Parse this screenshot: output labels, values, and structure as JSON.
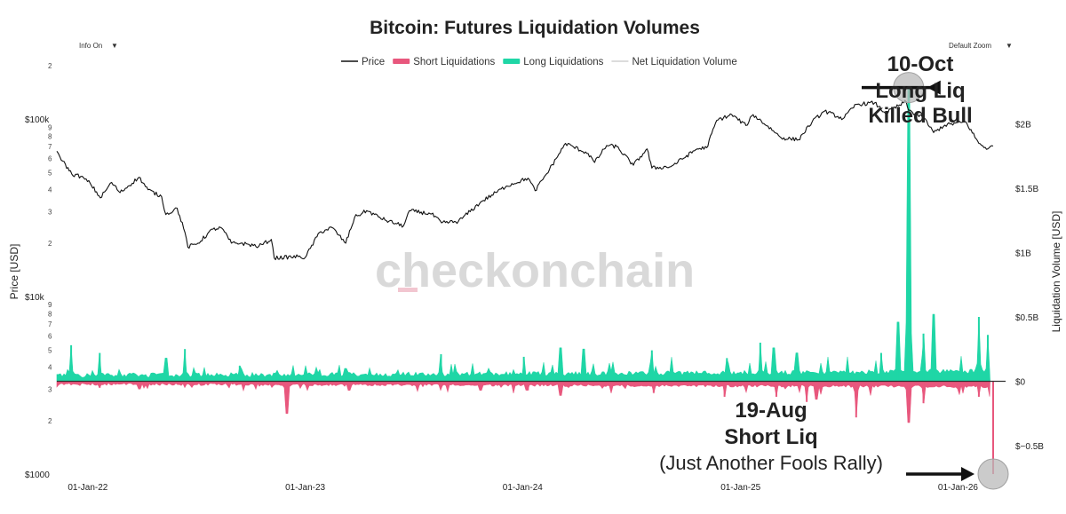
{
  "page": {
    "title": "Bitcoin: Futures Liquidation Volumes",
    "info_toggle": "Info On",
    "zoom_control": "Default Zoom",
    "dropdown_icon": "triangle-down-icon",
    "watermark": "checkonchain"
  },
  "colors": {
    "price": "#111111",
    "short": "#e8577d",
    "long": "#1fd6a6",
    "net": "#d0d0d0",
    "marker": "#b9b9b9"
  },
  "chart_data": {
    "type": "line",
    "title": "Bitcoin: Futures Liquidation Volumes",
    "x_ticks": [
      "01-Jan-22",
      "01-Jan-23",
      "01-Jan-24",
      "01-Jan-25",
      "01-Jan-26"
    ],
    "x_tick_dates": [
      "2022-01-01",
      "2023-01-01",
      "2024-01-01",
      "2025-01-01",
      "2026-01-01"
    ],
    "x_range": [
      "2021-11-10",
      "2026-03-01"
    ],
    "y_left": {
      "label": "Price [USD]",
      "scale": "log",
      "range": [
        1000,
        200000
      ],
      "major_ticks": [
        {
          "value": 1000,
          "label": "$1000"
        },
        {
          "value": 10000,
          "label": "$10k"
        },
        {
          "value": 100000,
          "label": "$100k"
        }
      ],
      "minor_ticks": [
        {
          "value": 2000,
          "label": "2"
        },
        {
          "value": 3000,
          "label": "3"
        },
        {
          "value": 4000,
          "label": "4"
        },
        {
          "value": 5000,
          "label": "5"
        },
        {
          "value": 6000,
          "label": "6"
        },
        {
          "value": 7000,
          "label": "7"
        },
        {
          "value": 8000,
          "label": "8"
        },
        {
          "value": 9000,
          "label": "9"
        },
        {
          "value": 20000,
          "label": "2"
        },
        {
          "value": 30000,
          "label": "3"
        },
        {
          "value": 40000,
          "label": "4"
        },
        {
          "value": 50000,
          "label": "5"
        },
        {
          "value": 60000,
          "label": "6"
        },
        {
          "value": 70000,
          "label": "7"
        },
        {
          "value": 80000,
          "label": "8"
        },
        {
          "value": 90000,
          "label": "9"
        },
        {
          "value": 200000,
          "label": "2"
        }
      ]
    },
    "y_right": {
      "label": "Liquidation Volume [USD]",
      "range": [
        -0.72,
        2.45
      ],
      "unit": "billions USD",
      "ticks": [
        {
          "value": 2,
          "label": "$2B"
        },
        {
          "value": 1.5,
          "label": "$1.5B"
        },
        {
          "value": 1,
          "label": "$1B"
        },
        {
          "value": 0.5,
          "label": "$0.5B"
        },
        {
          "value": 0,
          "label": "$0"
        },
        {
          "value": -0.5,
          "label": "$−0.5B"
        }
      ]
    },
    "legend": {
      "placement": "top-center",
      "items": [
        {
          "name": "Price",
          "style": "line",
          "color": "#111111"
        },
        {
          "name": "Short Liquidations",
          "style": "area",
          "color": "#e8577d"
        },
        {
          "name": "Long Liquidations",
          "style": "area",
          "color": "#1fd6a6"
        },
        {
          "name": "Net Liquidation Volume",
          "style": "line",
          "color": "#d0d0d0"
        }
      ]
    },
    "series": [
      {
        "name": "Price",
        "axis": "left",
        "points": [
          [
            "2021-11-10",
            66000
          ],
          [
            "2021-11-20",
            58000
          ],
          [
            "2021-12-05",
            49000
          ],
          [
            "2021-12-20",
            47500
          ],
          [
            "2022-01-05",
            43500
          ],
          [
            "2022-01-22",
            36000
          ],
          [
            "2022-02-10",
            44000
          ],
          [
            "2022-02-24",
            38500
          ],
          [
            "2022-03-28",
            47000
          ],
          [
            "2022-04-12",
            40000
          ],
          [
            "2022-05-05",
            36500
          ],
          [
            "2022-05-12",
            29000
          ],
          [
            "2022-05-31",
            31500
          ],
          [
            "2022-06-13",
            23000
          ],
          [
            "2022-06-18",
            19000
          ],
          [
            "2022-07-05",
            20000
          ],
          [
            "2022-07-30",
            24000
          ],
          [
            "2022-08-14",
            24300
          ],
          [
            "2022-08-30",
            20000
          ],
          [
            "2022-09-15",
            20000
          ],
          [
            "2022-10-15",
            19200
          ],
          [
            "2022-11-05",
            21000
          ],
          [
            "2022-11-10",
            16500
          ],
          [
            "2022-12-20",
            16800
          ],
          [
            "2023-01-01",
            16600
          ],
          [
            "2023-01-25",
            23000
          ],
          [
            "2023-02-15",
            24500
          ],
          [
            "2023-03-10",
            20000
          ],
          [
            "2023-03-25",
            28000
          ],
          [
            "2023-04-14",
            30500
          ],
          [
            "2023-05-15",
            27000
          ],
          [
            "2023-06-15",
            25000
          ],
          [
            "2023-06-25",
            30500
          ],
          [
            "2023-08-01",
            29200
          ],
          [
            "2023-08-18",
            26000
          ],
          [
            "2023-09-15",
            26500
          ],
          [
            "2023-10-25",
            34500
          ],
          [
            "2023-12-05",
            42000
          ],
          [
            "2024-01-10",
            46500
          ],
          [
            "2024-01-22",
            39500
          ],
          [
            "2024-02-15",
            52000
          ],
          [
            "2024-03-13",
            73000
          ],
          [
            "2024-04-20",
            64000
          ],
          [
            "2024-05-01",
            57000
          ],
          [
            "2024-05-21",
            71000
          ],
          [
            "2024-06-07",
            70000
          ],
          [
            "2024-07-05",
            55000
          ],
          [
            "2024-07-28",
            68000
          ],
          [
            "2024-08-05",
            53000
          ],
          [
            "2024-09-06",
            54000
          ],
          [
            "2024-10-20",
            68000
          ],
          [
            "2024-11-05",
            69000
          ],
          [
            "2024-11-22",
            98500
          ],
          [
            "2024-12-17",
            106000
          ],
          [
            "2025-01-10",
            92000
          ],
          [
            "2025-01-22",
            106000
          ],
          [
            "2025-02-25",
            86000
          ],
          [
            "2025-03-10",
            78500
          ],
          [
            "2025-04-08",
            76500
          ],
          [
            "2025-05-01",
            96500
          ],
          [
            "2025-05-22",
            111000
          ],
          [
            "2025-06-22",
            100500
          ],
          [
            "2025-07-14",
            121000
          ],
          [
            "2025-08-14",
            123500
          ],
          [
            "2025-09-01",
            108000
          ],
          [
            "2025-10-06",
            125500
          ],
          [
            "2025-10-10",
            112000
          ],
          [
            "2025-11-05",
            101000
          ],
          [
            "2025-11-21",
            84000
          ],
          [
            "2025-12-10",
            92500
          ],
          [
            "2026-01-14",
            96500
          ],
          [
            "2026-02-05",
            73000
          ],
          [
            "2026-02-20",
            68000
          ],
          [
            "2026-03-01",
            70500
          ]
        ]
      },
      {
        "name": "Long Liquidations",
        "axis": "right",
        "unit": "billions USD",
        "points": [
          [
            "2021-12-04",
            0.28
          ],
          [
            "2022-01-21",
            0.22
          ],
          [
            "2022-05-12",
            0.18
          ],
          [
            "2022-06-13",
            0.25
          ],
          [
            "2022-09-13",
            0.12
          ],
          [
            "2023-03-09",
            0.1
          ],
          [
            "2023-08-17",
            0.21
          ],
          [
            "2024-01-03",
            0.19
          ],
          [
            "2024-03-05",
            0.26
          ],
          [
            "2024-04-13",
            0.25
          ],
          [
            "2024-08-05",
            0.24
          ],
          [
            "2024-12-09",
            0.18
          ],
          [
            "2025-02-03",
            0.3
          ],
          [
            "2025-02-25",
            0.26
          ],
          [
            "2025-04-06",
            0.22
          ],
          [
            "2025-08-25",
            0.22
          ],
          [
            "2025-09-22",
            0.46
          ],
          [
            "2025-10-10",
            2.28
          ],
          [
            "2025-11-04",
            0.37
          ],
          [
            "2025-11-21",
            0.52
          ],
          [
            "2026-02-05",
            0.5
          ],
          [
            "2026-02-20",
            0.36
          ]
        ]
      },
      {
        "name": "Short Liquidations",
        "axis": "right",
        "unit": "billions USD",
        "points": [
          [
            "2022-01-21",
            -0.05
          ],
          [
            "2022-03-28",
            -0.06
          ],
          [
            "2022-12-01",
            -0.25
          ],
          [
            "2023-03-15",
            -0.07
          ],
          [
            "2023-10-23",
            -0.07
          ],
          [
            "2024-01-10",
            -0.07
          ],
          [
            "2024-03-05",
            -0.11
          ],
          [
            "2024-08-08",
            -0.09
          ],
          [
            "2024-12-05",
            -0.12
          ],
          [
            "2025-03-02",
            -0.12
          ],
          [
            "2025-04-22",
            -0.16
          ],
          [
            "2025-05-08",
            -0.14
          ],
          [
            "2025-07-14",
            -0.28
          ],
          [
            "2025-10-10",
            -0.32
          ],
          [
            "2025-11-04",
            -0.17
          ],
          [
            "2026-02-05",
            -0.12
          ],
          [
            "2026-03-01",
            -0.72
          ]
        ]
      }
    ],
    "annotations": [
      {
        "lines": [
          "10-Oct",
          "Long Liq",
          "Killed Bull"
        ],
        "date": "2025-10-10",
        "value": 2.28
      },
      {
        "lines": [
          "19-Aug",
          "Short Liq",
          "(Just Another Fools Rally)"
        ],
        "date": "2026-03-01",
        "value": -0.72
      }
    ],
    "grid": false
  }
}
